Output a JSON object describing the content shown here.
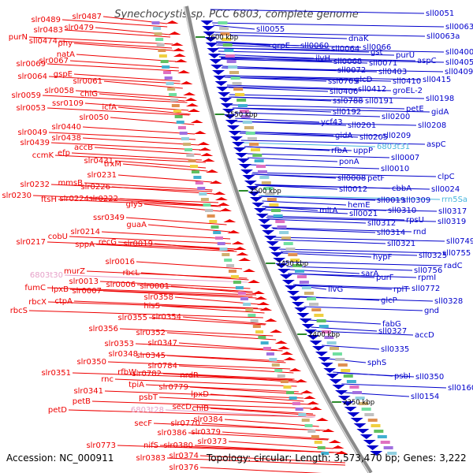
{
  "title": "Synechocystis sp. PCC 6803, complete genome",
  "footer": {
    "accession": "Accession: NC_000911",
    "summary": "Topology: circular; Length: 3,573,470 bp; Genes: 3,222"
  },
  "colors": {
    "left_strand": "#ee0000",
    "right_strand": "#0000cc",
    "rna_gene": "#e6a0c8",
    "trna_gene": "#46b4dc",
    "backbone": "#888888"
  },
  "kbp_ticks": [
    "2600 kbp",
    "2550 kbp",
    "2500 kbp",
    "2450 kbp",
    "2400 kbp",
    "2350 kbp"
  ],
  "left_labels": [
    "slr0489",
    "slr0487",
    "slr0483",
    "slr0479",
    "purN",
    "sll0474",
    "phy",
    "natA",
    "slr0069",
    "slr0067",
    "slr0064",
    "gspE",
    "slr0061",
    "slr0059",
    "slr0058",
    "chlG",
    "slr0053",
    "ssr0109",
    "icfA",
    "slr0050",
    "slr0049",
    "slr0440",
    "slr0439",
    "slr0438",
    "ccmK",
    "efp",
    "accB",
    "slr0431",
    "trxM",
    "slr0231",
    "slr0232",
    "mmsB",
    "slr0226",
    "slr0230",
    "ftsH",
    "slr0224",
    "slr0222",
    "glyS",
    "ssr0349",
    "guaA",
    "cobU",
    "slr0214",
    "slr0217",
    "sppA",
    "recG",
    "slr0019",
    "slr0016",
    "murZ",
    "rbcL",
    "fumC",
    "lpxB",
    "slr0013",
    "slr0006",
    "slr0007",
    "rbcX",
    "ctpA",
    "rbcS",
    "slr0001",
    "slr0358",
    "hisS",
    "slr0355",
    "slr0354",
    "slr0356",
    "slr0352",
    "slr0353",
    "slr0347",
    "slr0348",
    "slr0345",
    "slr0350",
    "slr0784",
    "slr0351",
    "rnc",
    "rfbW",
    "slr0782",
    "nrdR",
    "tpiA",
    "slr0341",
    "slr0779",
    "petB",
    "psbT",
    "lpxD",
    "petD",
    "secD",
    "chlB",
    "secF",
    "slr0770",
    "slr0384",
    "slr0386",
    "slr0379",
    "slr0773",
    "nifS",
    "slr0380",
    "slr0373",
    "slr0383",
    "slr0374",
    "slr0376",
    "6803t30",
    "6803t28"
  ],
  "right_labels": [
    "sll0051",
    "sll0055",
    "sll0063",
    "dnaK",
    "sll0063a",
    "grpE",
    "sll0060",
    "sll0064",
    "sll0066",
    "gst",
    "purU",
    "ilvH",
    "sll0068",
    "sll0071",
    "sll0400",
    "aspC",
    "sll0405",
    "sll0072",
    "sll0403",
    "sll0409",
    "ssl0769",
    "glcD",
    "sll0410",
    "sll0415",
    "sll0406",
    "sll0412",
    "groEL-2",
    "ssl0788",
    "sll0191",
    "sll0198",
    "sll0192",
    "petE",
    "gidA",
    "sll0200",
    "ycf43",
    "sll0201",
    "sll0208",
    "gidA",
    "sll0205",
    "sll0209",
    "rfbA",
    "uppP",
    "6803t31",
    "aspC",
    "sll0007",
    "ponA",
    "sll0010",
    "sll0008",
    "petF",
    "clpC",
    "sll0012",
    "cbbA",
    "sll0024",
    "hemE",
    "sll0019",
    "sll0309",
    "rrn5Sa",
    "mltA",
    "sll0021",
    "sll0310",
    "sll0317",
    "rpsU",
    "sll0312",
    "sll0319",
    "sll0314",
    "rnd",
    "sll0749",
    "sll0321",
    "hypF",
    "sll0325",
    "sll0755",
    "radC",
    "sarA",
    "sll0756",
    "purF",
    "rpmI",
    "livG",
    "rplT",
    "sll0772",
    "glcP",
    "sll0328",
    "gnd",
    "fabG",
    "sll0327",
    "accD",
    "sll0335",
    "sphS",
    "psbI",
    "sll0350",
    "sll0160",
    "sll0154"
  ]
}
